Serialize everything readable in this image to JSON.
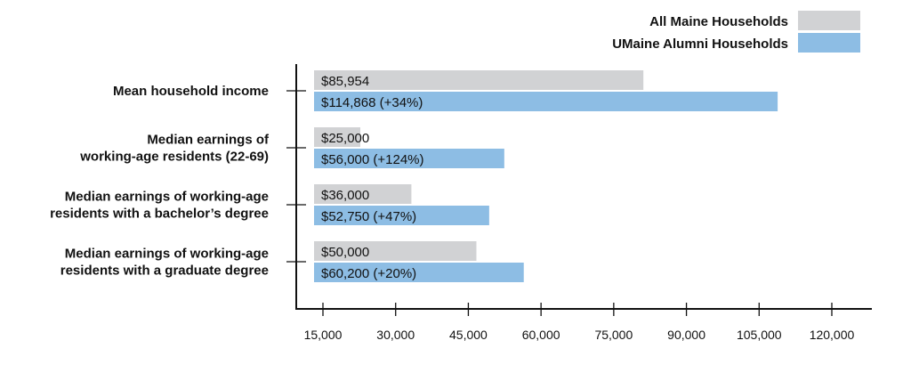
{
  "chart_data": {
    "type": "bar",
    "orientation": "horizontal",
    "title": "",
    "xlabel": "",
    "ylabel": "",
    "categories": [
      [
        "Mean household income"
      ],
      [
        "Median earnings of",
        "working-age residents (22-69)"
      ],
      [
        "Median earnings of working-age",
        "residents with a bachelor’s degree"
      ],
      [
        "Median earnings of working-age",
        "residents with a graduate degree"
      ]
    ],
    "series": [
      {
        "name": "All Maine Households",
        "color": "#d1d2d4",
        "values": [
          85954,
          25000,
          36000,
          50000
        ],
        "labels": [
          "$85,954",
          "$25,000",
          "$36,000",
          "$50,000"
        ]
      },
      {
        "name": "UMaine Alumni Households",
        "color": "#8dbde4",
        "values": [
          114868,
          56000,
          52750,
          60200
        ],
        "labels": [
          "$114,868 (+34%)",
          "$56,000 (+124%)",
          "$52,750 (+47%)",
          "$60,200 (+20%)"
        ]
      }
    ],
    "xticks": [
      15000,
      30000,
      45000,
      60000,
      75000,
      90000,
      105000,
      120000
    ],
    "xtick_labels": [
      "15,000",
      "30,000",
      "45,000",
      "60,000",
      "75,000",
      "90,000",
      "105,000",
      "120,000"
    ],
    "legend_position": "top-right",
    "grid": false
  }
}
